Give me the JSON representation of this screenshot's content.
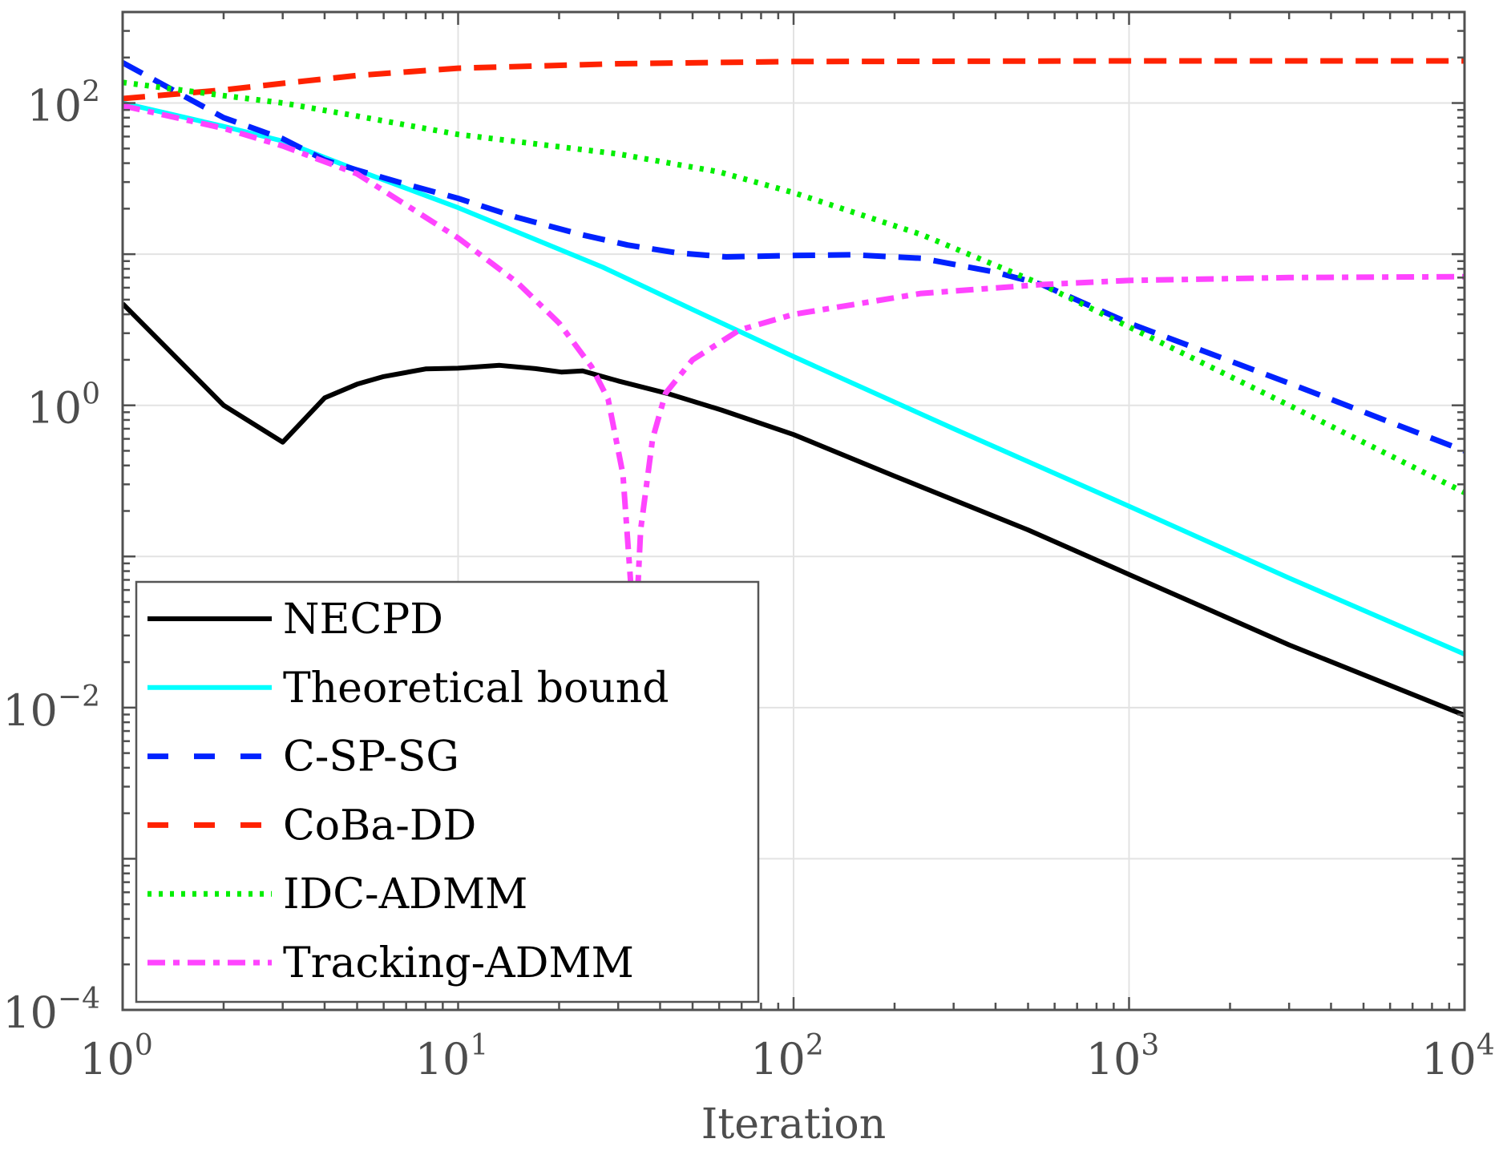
{
  "chart_data": {
    "type": "line",
    "title": "",
    "xlabel": "Iteration",
    "ylabel": "",
    "xscale": "log",
    "yscale": "log",
    "xlim": [
      1,
      10000
    ],
    "ylim": [
      0.0001,
      400
    ],
    "grid": true,
    "legend_position": "bottom-left",
    "x_ticks": [
      {
        "value": 1,
        "base": "10",
        "exp": "0"
      },
      {
        "value": 10,
        "base": "10",
        "exp": "1"
      },
      {
        "value": 100,
        "base": "10",
        "exp": "2"
      },
      {
        "value": 1000,
        "base": "10",
        "exp": "3"
      },
      {
        "value": 10000,
        "base": "10",
        "exp": "4"
      }
    ],
    "y_ticks": [
      {
        "value": 0.0001,
        "base": "10",
        "exp": "−4"
      },
      {
        "value": 0.01,
        "base": "10",
        "exp": "−2"
      },
      {
        "value": 1,
        "base": "10",
        "exp": "0"
      },
      {
        "value": 100,
        "base": "10",
        "exp": "2"
      }
    ],
    "series": [
      {
        "name": "NECPD",
        "color": "#000000",
        "style": "solid",
        "points": [
          [
            1,
            4.7
          ],
          [
            2,
            1.0
          ],
          [
            3,
            0.57
          ],
          [
            4,
            1.12
          ],
          [
            5,
            1.38
          ],
          [
            6,
            1.55
          ],
          [
            8,
            1.74
          ],
          [
            10,
            1.76
          ],
          [
            13.3,
            1.84
          ],
          [
            17,
            1.75
          ],
          [
            20.3,
            1.66
          ],
          [
            23.5,
            1.69
          ],
          [
            30,
            1.45
          ],
          [
            42,
            1.2
          ],
          [
            61,
            0.93
          ],
          [
            100,
            0.64
          ],
          [
            200,
            0.34
          ],
          [
            500,
            0.15
          ],
          [
            1000,
            0.076
          ],
          [
            3000,
            0.026
          ],
          [
            10000,
            0.0089
          ]
        ]
      },
      {
        "name": "Theoretical bound",
        "color": "#00ffff",
        "style": "solid",
        "points": [
          [
            1,
            100
          ],
          [
            2,
            70
          ],
          [
            3,
            56
          ],
          [
            5,
            36
          ],
          [
            10,
            20.3
          ],
          [
            27,
            8.2
          ],
          [
            50,
            4.3
          ],
          [
            100,
            2.1
          ],
          [
            300,
            0.7
          ],
          [
            1000,
            0.215
          ],
          [
            3000,
            0.072
          ],
          [
            10000,
            0.0226
          ]
        ]
      },
      {
        "name": "C-SP-SG",
        "color": "#0022ff",
        "style": "dashed",
        "points": [
          [
            1,
            185
          ],
          [
            2,
            80
          ],
          [
            2.6,
            65
          ],
          [
            3,
            58
          ],
          [
            4,
            42
          ],
          [
            5,
            36
          ],
          [
            7,
            29
          ],
          [
            10,
            23.4
          ],
          [
            15,
            17.5
          ],
          [
            23.5,
            13.4
          ],
          [
            32,
            11.5
          ],
          [
            45,
            10.2
          ],
          [
            63,
            9.6
          ],
          [
            100,
            9.8
          ],
          [
            150,
            9.9
          ],
          [
            240,
            9.4
          ],
          [
            400,
            7.6
          ],
          [
            550,
            6.3
          ],
          [
            1000,
            3.5
          ],
          [
            3000,
            1.4
          ],
          [
            10000,
            0.5
          ]
        ]
      },
      {
        "name": "CoBa-DD",
        "color": "#ff2200",
        "style": "dashed",
        "points": [
          [
            1,
            107
          ],
          [
            2,
            122
          ],
          [
            3,
            135
          ],
          [
            5,
            152
          ],
          [
            10,
            170
          ],
          [
            30,
            182
          ],
          [
            100,
            188
          ],
          [
            1000,
            190
          ],
          [
            10000,
            190
          ]
        ]
      },
      {
        "name": "IDC-ADMM",
        "color": "#00ee00",
        "style": "dotted",
        "points": [
          [
            1,
            137
          ],
          [
            2,
            112
          ],
          [
            3,
            100
          ],
          [
            5,
            82
          ],
          [
            10,
            62
          ],
          [
            30,
            46
          ],
          [
            60,
            35
          ],
          [
            100,
            25.5
          ],
          [
            240,
            13.5
          ],
          [
            550,
            6.3
          ],
          [
            1000,
            3.3
          ],
          [
            3000,
            1.0
          ],
          [
            10000,
            0.265
          ]
        ]
      },
      {
        "name": "Tracking-ADMM",
        "color": "#ff44ff",
        "style": "dashdot",
        "points": [
          [
            1,
            96
          ],
          [
            2,
            68
          ],
          [
            3,
            52
          ],
          [
            5,
            34
          ],
          [
            10,
            12.8
          ],
          [
            15,
            6.5
          ],
          [
            20,
            3.5
          ],
          [
            25,
            1.8
          ],
          [
            28,
            1.1
          ],
          [
            31,
            0.35
          ],
          [
            33,
            0.05
          ],
          [
            33.5,
            0.02
          ],
          [
            35,
            0.15
          ],
          [
            38,
            0.6
          ],
          [
            41.5,
            1.2
          ],
          [
            50,
            2.0
          ],
          [
            69,
            3.15
          ],
          [
            100,
            4.0
          ],
          [
            240,
            5.5
          ],
          [
            550,
            6.3
          ],
          [
            1000,
            6.7
          ],
          [
            3000,
            7.0
          ],
          [
            10000,
            7.1
          ]
        ]
      }
    ]
  }
}
